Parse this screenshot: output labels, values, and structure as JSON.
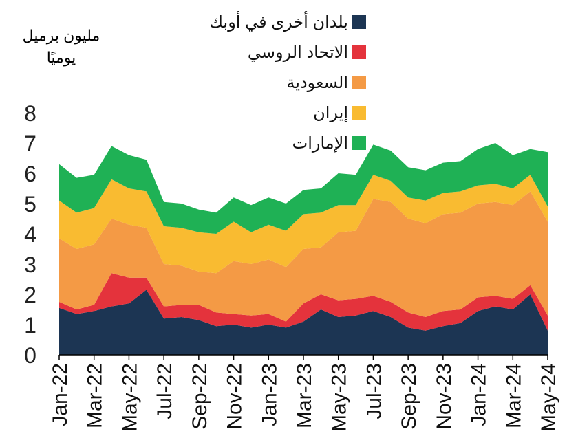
{
  "chart_data": {
    "type": "area",
    "stacked": true,
    "ylabel_lines": [
      "مليون برميل",
      "يوميًا"
    ],
    "ylim": [
      0,
      8
    ],
    "yticks": [
      0,
      1,
      2,
      3,
      4,
      5,
      6,
      7,
      8
    ],
    "x_ticklabels": [
      "Jan-22",
      "Mar-22",
      "May-22",
      "Jul-22",
      "Sep-22",
      "Nov-22",
      "Jan-23",
      "Mar-23",
      "May-23",
      "Jul-23",
      "Sep-23",
      "Nov-23",
      "Jan-24",
      "Mar-24",
      "May-24"
    ],
    "months": [
      "Jan-22",
      "Feb-22",
      "Mar-22",
      "Apr-22",
      "May-22",
      "Jun-22",
      "Jul-22",
      "Aug-22",
      "Sep-22",
      "Oct-22",
      "Nov-22",
      "Dec-22",
      "Jan-23",
      "Feb-23",
      "Mar-23",
      "Apr-23",
      "May-23",
      "Jun-23",
      "Jul-23",
      "Aug-23",
      "Sep-23",
      "Oct-23",
      "Nov-23",
      "Dec-23",
      "Jan-24",
      "Feb-24",
      "Mar-24",
      "Apr-24",
      "May-24"
    ],
    "legend_position": "top-center",
    "series": [
      {
        "name": "بلدان أخرى في أوبك",
        "color": "#1c3553",
        "values": [
          1.55,
          1.35,
          1.45,
          1.6,
          1.7,
          2.15,
          1.2,
          1.25,
          1.15,
          0.95,
          1.0,
          0.9,
          1.0,
          0.9,
          1.1,
          1.5,
          1.25,
          1.3,
          1.45,
          1.25,
          0.9,
          0.8,
          0.95,
          1.05,
          1.45,
          1.6,
          1.5,
          2.0,
          0.8
        ]
      },
      {
        "name": "الاتحاد الروسي",
        "color": "#e4333c",
        "values": [
          0.2,
          0.15,
          0.2,
          1.1,
          0.85,
          0.4,
          0.4,
          0.4,
          0.5,
          0.45,
          0.35,
          0.4,
          0.35,
          0.2,
          0.6,
          0.5,
          0.55,
          0.55,
          0.5,
          0.5,
          0.5,
          0.45,
          0.5,
          0.45,
          0.45,
          0.35,
          0.35,
          0.3,
          0.5
        ]
      },
      {
        "name": "السعودية",
        "color": "#f49a45",
        "values": [
          2.1,
          2.0,
          2.0,
          1.8,
          1.75,
          1.65,
          1.4,
          1.3,
          1.1,
          1.3,
          1.75,
          1.7,
          1.8,
          1.8,
          1.8,
          1.55,
          2.25,
          2.25,
          3.2,
          3.3,
          3.1,
          3.1,
          3.2,
          3.2,
          3.1,
          3.1,
          3.1,
          3.1,
          3.1
        ]
      },
      {
        "name": "إيران",
        "color": "#f9bb31",
        "values": [
          1.25,
          1.2,
          1.2,
          1.3,
          1.2,
          1.2,
          1.25,
          1.25,
          1.3,
          1.3,
          1.3,
          1.05,
          1.15,
          1.2,
          1.15,
          1.15,
          0.9,
          0.85,
          0.8,
          0.7,
          0.7,
          0.75,
          0.7,
          0.7,
          0.6,
          0.6,
          0.55,
          0.55,
          0.5
        ]
      },
      {
        "name": "الإمارات",
        "color": "#1fb155",
        "values": [
          1.2,
          1.15,
          1.1,
          1.1,
          1.1,
          1.05,
          0.8,
          0.8,
          0.75,
          0.7,
          0.8,
          0.9,
          0.9,
          0.9,
          0.8,
          0.8,
          1.05,
          1.0,
          1.0,
          1.0,
          1.0,
          1.0,
          1.0,
          1.0,
          1.2,
          1.35,
          1.1,
          0.85,
          1.8
        ]
      }
    ]
  }
}
